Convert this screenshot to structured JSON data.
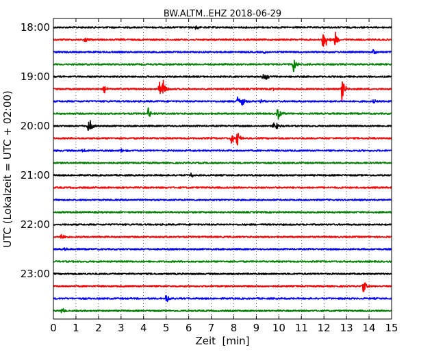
{
  "chart_data": {
    "type": "line",
    "subtype": "helicorder",
    "title": "BW.ALTM..EHZ 2018-06-29",
    "xlabel": "Zeit  [min]",
    "ylabel": "UTC (Lokalzeit = UTC + 02:00)",
    "xlim": [
      0,
      15
    ],
    "x_ticks": [
      0,
      1,
      2,
      3,
      4,
      5,
      6,
      7,
      8,
      9,
      10,
      11,
      12,
      13,
      14,
      15
    ],
    "x_tick_labels": [
      "0",
      "1",
      "2",
      "3",
      "4",
      "5",
      "6",
      "7",
      "8",
      "9",
      "10",
      "11",
      "12",
      "13",
      "14",
      "15"
    ],
    "y_tick_labels": [
      "18:00",
      "19:00",
      "20:00",
      "21:00",
      "22:00",
      "23:00"
    ],
    "grid": "vertical dotted",
    "colors": [
      "#000000",
      "#ff0000",
      "#0000ff",
      "#008000"
    ],
    "rows": [
      {
        "start": "18:00",
        "events": [
          {
            "t": 6.3,
            "amp": 4
          }
        ]
      },
      {
        "start": "18:15",
        "events": [
          {
            "t": 1.4,
            "amp": 5
          },
          {
            "t": 11.95,
            "amp": 16
          },
          {
            "t": 12.1,
            "amp": 9
          },
          {
            "t": 12.5,
            "amp": 12
          }
        ]
      },
      {
        "start": "18:30",
        "events": [
          {
            "t": 9.35,
            "amp": 3
          },
          {
            "t": 14.2,
            "amp": 5
          }
        ]
      },
      {
        "start": "18:45",
        "events": [
          {
            "t": 10.65,
            "amp": 11
          },
          {
            "t": 11.2,
            "amp": 3
          }
        ]
      },
      {
        "start": "19:00",
        "events": [
          {
            "t": 9.3,
            "amp": 5
          },
          {
            "t": 9.45,
            "amp": 5
          }
        ]
      },
      {
        "start": "19:15",
        "events": [
          {
            "t": 2.25,
            "amp": 7
          },
          {
            "t": 4.7,
            "amp": 15
          },
          {
            "t": 4.85,
            "amp": 14
          },
          {
            "t": 9.7,
            "amp": 3
          },
          {
            "t": 12.8,
            "amp": 19
          }
        ]
      },
      {
        "start": "19:30",
        "events": [
          {
            "t": 8.15,
            "amp": 9
          },
          {
            "t": 8.35,
            "amp": 11
          },
          {
            "t": 9.2,
            "amp": 3
          },
          {
            "t": 14.2,
            "amp": 3
          }
        ]
      },
      {
        "start": "19:45",
        "events": [
          {
            "t": 4.2,
            "amp": 9
          },
          {
            "t": 9.95,
            "amp": 10
          }
        ]
      },
      {
        "start": "20:00",
        "events": [
          {
            "t": 1.5,
            "amp": 12
          },
          {
            "t": 1.62,
            "amp": 11
          },
          {
            "t": 9.75,
            "amp": 5
          },
          {
            "t": 9.9,
            "amp": 5
          }
        ]
      },
      {
        "start": "20:15",
        "events": [
          {
            "t": 7.9,
            "amp": 14
          },
          {
            "t": 8.15,
            "amp": 13
          },
          {
            "t": 14.0,
            "amp": 2
          }
        ]
      },
      {
        "start": "20:30",
        "events": [
          {
            "t": 1.3,
            "amp": 5
          },
          {
            "t": 3.0,
            "amp": 4
          }
        ]
      },
      {
        "start": "20:45",
        "events": []
      },
      {
        "start": "21:00",
        "events": [
          {
            "t": 6.1,
            "amp": 4
          }
        ]
      },
      {
        "start": "21:15",
        "events": []
      },
      {
        "start": "21:30",
        "events": []
      },
      {
        "start": "21:45",
        "events": []
      },
      {
        "start": "22:00",
        "events": []
      },
      {
        "start": "22:15",
        "events": [
          {
            "t": 0.35,
            "amp": 6
          }
        ]
      },
      {
        "start": "22:30",
        "events": [
          {
            "t": 0.5,
            "amp": 3
          }
        ]
      },
      {
        "start": "22:45",
        "events": []
      },
      {
        "start": "23:00",
        "events": []
      },
      {
        "start": "23:15",
        "events": [
          {
            "t": 13.75,
            "amp": 10
          }
        ]
      },
      {
        "start": "23:30",
        "events": [
          {
            "t": 5.0,
            "amp": 8
          }
        ]
      },
      {
        "start": "23:45",
        "events": [
          {
            "t": 0.35,
            "amp": 6
          }
        ]
      }
    ]
  }
}
